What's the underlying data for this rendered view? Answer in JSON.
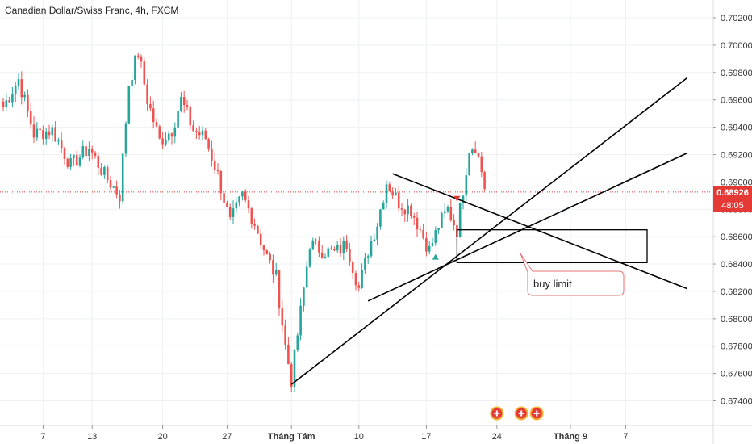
{
  "header": {
    "title": "Canadian Dollar/Swiss Franc, 4h, FXCM"
  },
  "price_tag": {
    "price": "0.68926",
    "timer": "48:05"
  },
  "annotation": {
    "text": "buy limit"
  },
  "colors": {
    "up": "#26a69a",
    "down": "#ef5350",
    "line": "#000000",
    "grid": "#eef0f3",
    "price_line": "#e53935",
    "event": "#e53935",
    "event_ring": "#f2b134"
  },
  "chart_data": {
    "type": "candlestick",
    "title": "Canadian Dollar/Swiss Franc, 4h, FXCM",
    "ylim": [
      0.6722,
      0.7033
    ],
    "yticks": [
      "0.70200",
      "0.70000",
      "0.69800",
      "0.69600",
      "0.69400",
      "0.69200",
      "0.69000",
      "0.68800",
      "0.68600",
      "0.68400",
      "0.68200",
      "0.68000",
      "0.67800",
      "0.67600",
      "0.67400"
    ],
    "ytick_values": [
      0.702,
      0.7,
      0.698,
      0.696,
      0.694,
      0.692,
      0.69,
      0.688,
      0.686,
      0.684,
      0.682,
      0.68,
      0.678,
      0.676,
      0.674
    ],
    "xticks": [
      {
        "label": "7",
        "idx": 13,
        "bold": false
      },
      {
        "label": "13",
        "idx": 29,
        "bold": false
      },
      {
        "label": "20",
        "idx": 52,
        "bold": false
      },
      {
        "label": "27",
        "idx": 73,
        "bold": false
      },
      {
        "label": "Tháng Tám",
        "idx": 94,
        "bold": true
      },
      {
        "label": "10",
        "idx": 116,
        "bold": false
      },
      {
        "label": "17",
        "idx": 138,
        "bold": false
      },
      {
        "label": "24",
        "idx": 161,
        "bold": false
      },
      {
        "label": "Tháng 9",
        "idx": 185,
        "bold": true
      },
      {
        "label": "7",
        "idx": 203,
        "bold": false
      }
    ],
    "current_price": 0.68926,
    "anchors": [
      [
        0,
        0.6955
      ],
      [
        5,
        0.6975
      ],
      [
        10,
        0.6935
      ],
      [
        16,
        0.6938
      ],
      [
        22,
        0.6912
      ],
      [
        28,
        0.6925
      ],
      [
        33,
        0.6905
      ],
      [
        38,
        0.689
      ],
      [
        41,
        0.6972
      ],
      [
        44,
        0.6995
      ],
      [
        47,
        0.696
      ],
      [
        51,
        0.693
      ],
      [
        55,
        0.6938
      ],
      [
        58,
        0.696
      ],
      [
        62,
        0.6938
      ],
      [
        66,
        0.6932
      ],
      [
        70,
        0.6905
      ],
      [
        74,
        0.687
      ],
      [
        78,
        0.689
      ],
      [
        82,
        0.687
      ],
      [
        86,
        0.6845
      ],
      [
        89,
        0.683
      ],
      [
        92,
        0.678
      ],
      [
        94,
        0.6755
      ],
      [
        97,
        0.6805
      ],
      [
        100,
        0.6855
      ],
      [
        104,
        0.685
      ],
      [
        108,
        0.6848
      ],
      [
        112,
        0.6855
      ],
      [
        116,
        0.6822
      ],
      [
        119,
        0.685
      ],
      [
        122,
        0.687
      ],
      [
        125,
        0.69
      ],
      [
        129,
        0.6885
      ],
      [
        133,
        0.688
      ],
      [
        136,
        0.6865
      ],
      [
        139,
        0.685
      ],
      [
        142,
        0.6868
      ],
      [
        145,
        0.688
      ],
      [
        148,
        0.6865
      ],
      [
        149,
        0.688
      ],
      [
        152,
        0.6925
      ],
      [
        154,
        0.6927
      ],
      [
        156,
        0.6908
      ],
      [
        157,
        0.6895
      ]
    ],
    "trendlines": [
      {
        "name": "lower-support-line",
        "i1": 94,
        "p1": 0.6752,
        "i2": 223,
        "p2": 0.6976
      },
      {
        "name": "wedge-lower-line",
        "i1": 119,
        "p1": 0.6813,
        "i2": 223,
        "p2": 0.6921
      },
      {
        "name": "wedge-upper-line",
        "i1": 127,
        "p1": 0.6906,
        "i2": 223,
        "p2": 0.6822
      }
    ],
    "zone": {
      "i1": 148,
      "i2": 210,
      "p_top": 0.6865,
      "p_bot": 0.6841
    },
    "markers": [
      {
        "type": "arrow-up",
        "idx": 141,
        "price": 0.6845,
        "color": "#26a69a"
      },
      {
        "type": "arrow-down",
        "idx": 148,
        "price": 0.6888,
        "color": "#e53935"
      }
    ],
    "events": [
      161,
      169,
      174
    ]
  }
}
